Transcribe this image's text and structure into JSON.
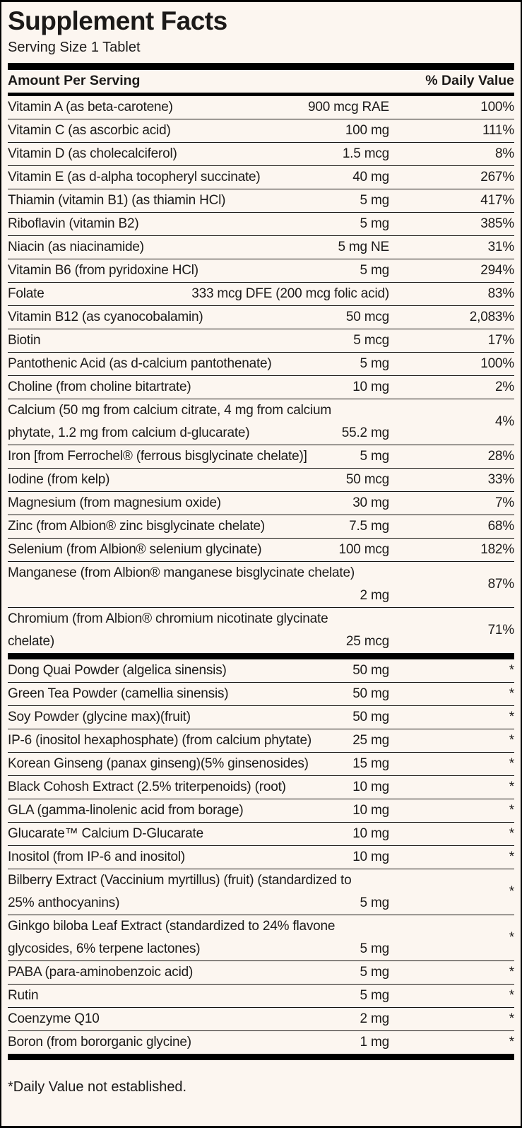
{
  "label": {
    "title": "Supplement Facts",
    "serving_size": "Serving Size 1 Tablet",
    "header": {
      "amount": "Amount Per Serving",
      "dv": "% Daily Value"
    },
    "footnote": "*Daily Value not established.",
    "colors": {
      "background": "#fcf6f0",
      "text": "#1c1a19",
      "rule": "#161412",
      "bar": "#000000"
    },
    "sections": [
      {
        "name": "vitamins-and-minerals",
        "rows": [
          {
            "name": "Vitamin A (as beta-carotene)",
            "amount": "900 mcg RAE",
            "dv": "100%"
          },
          {
            "name": "Vitamin C (as ascorbic acid)",
            "amount": "100 mg",
            "dv": "111%"
          },
          {
            "name": "Vitamin D (as cholecalciferol)",
            "amount": "1.5 mcg",
            "dv": "8%"
          },
          {
            "name": "Vitamin E (as d-alpha tocopheryl succinate)",
            "amount": "40 mg",
            "dv": "267%"
          },
          {
            "name": "Thiamin (vitamin B1) (as thiamin HCl)",
            "amount": "5 mg",
            "dv": "417%"
          },
          {
            "name": "Riboflavin (vitamin B2)",
            "amount": "5 mg",
            "dv": "385%"
          },
          {
            "name": "Niacin (as niacinamide)",
            "amount": "5 mg NE",
            "dv": "31%"
          },
          {
            "name": "Vitamin B6 (from pyridoxine HCl)",
            "amount": "5 mg",
            "dv": "294%"
          },
          {
            "name": "Folate",
            "amount": "333 mcg DFE (200 mcg folic acid)",
            "dv": "83%"
          },
          {
            "name": "Vitamin B12 (as cyanocobalamin)",
            "amount": "50 mcg",
            "dv": "2,083%"
          },
          {
            "name": "Biotin",
            "amount": "5 mcg",
            "dv": "17%"
          },
          {
            "name": "Pantothenic Acid (as d-calcium pantothenate)",
            "amount": "5 mg",
            "dv": "100%"
          },
          {
            "name": "Choline (from choline bitartrate)",
            "amount": "10 mg",
            "dv": "2%"
          },
          {
            "name": "Calcium (50 mg from calcium citrate, 4 mg from calcium",
            "name2": "phytate, 1.2 mg from calcium d-glucarate)",
            "amount": "55.2 mg",
            "dv": "4%"
          },
          {
            "name": "Iron [from Ferrochel® (ferrous bisglycinate chelate)]",
            "amount": "5 mg",
            "dv": "28%"
          },
          {
            "name": "Iodine (from kelp)",
            "amount": "50 mcg",
            "dv": "33%"
          },
          {
            "name": "Magnesium (from magnesium oxide)",
            "amount": "30 mg",
            "dv": "7%"
          },
          {
            "name": "Zinc (from Albion® zinc bisglycinate chelate)",
            "amount": "7.5 mg",
            "dv": "68%"
          },
          {
            "name": "Selenium (from Albion® selenium glycinate)",
            "amount": "100 mcg",
            "dv": "182%"
          },
          {
            "name": "Manganese (from Albion® manganese bisglycinate chelate)",
            "name2": "",
            "amount": "2 mg",
            "dv": "87%"
          },
          {
            "name": "Chromium (from Albion® chromium nicotinate glycinate",
            "name2": "chelate)",
            "amount": "25 mcg",
            "dv": "71%"
          }
        ]
      },
      {
        "name": "botanicals-and-other",
        "rows": [
          {
            "name": "Dong Quai Powder (algelica sinensis)",
            "amount": "50 mg",
            "dv": "*"
          },
          {
            "name": "Green Tea Powder (camellia sinensis)",
            "amount": "50 mg",
            "dv": "*"
          },
          {
            "name": "Soy Powder (glycine max)(fruit)",
            "amount": "50 mg",
            "dv": "*"
          },
          {
            "name": "IP-6 (inositol hexaphosphate) (from calcium phytate)",
            "amount": "25 mg",
            "dv": "*"
          },
          {
            "name": "Korean Ginseng (panax ginseng)(5% ginsenosides)",
            "amount": "15 mg",
            "dv": "*"
          },
          {
            "name": "Black Cohosh Extract (2.5% triterpenoids) (root)",
            "amount": "10 mg",
            "dv": "*"
          },
          {
            "name": "GLA (gamma-linolenic acid from borage)",
            "amount": "10 mg",
            "dv": "*"
          },
          {
            "name": "Glucarate™ Calcium D-Glucarate",
            "amount": "10 mg",
            "dv": "*"
          },
          {
            "name": "Inositol (from IP-6 and inositol)",
            "amount": "10 mg",
            "dv": "*"
          },
          {
            "name": "Bilberry Extract (Vaccinium myrtillus) (fruit) (standardized to",
            "name2": "25% anthocyanins)",
            "amount": "5 mg",
            "dv": "*"
          },
          {
            "name": "Ginkgo biloba Leaf Extract (standardized to 24% flavone",
            "name2": "glycosides, 6% terpene lactones)",
            "amount": "5 mg",
            "dv": "*"
          },
          {
            "name": "PABA (para-aminobenzoic acid)",
            "amount": "5 mg",
            "dv": "*"
          },
          {
            "name": "Rutin",
            "amount": "5 mg",
            "dv": "*"
          },
          {
            "name": "Coenzyme Q10",
            "amount": "2 mg",
            "dv": "*"
          },
          {
            "name": "Boron (from bororganic glycine)",
            "amount": "1 mg",
            "dv": "*"
          }
        ]
      }
    ]
  }
}
